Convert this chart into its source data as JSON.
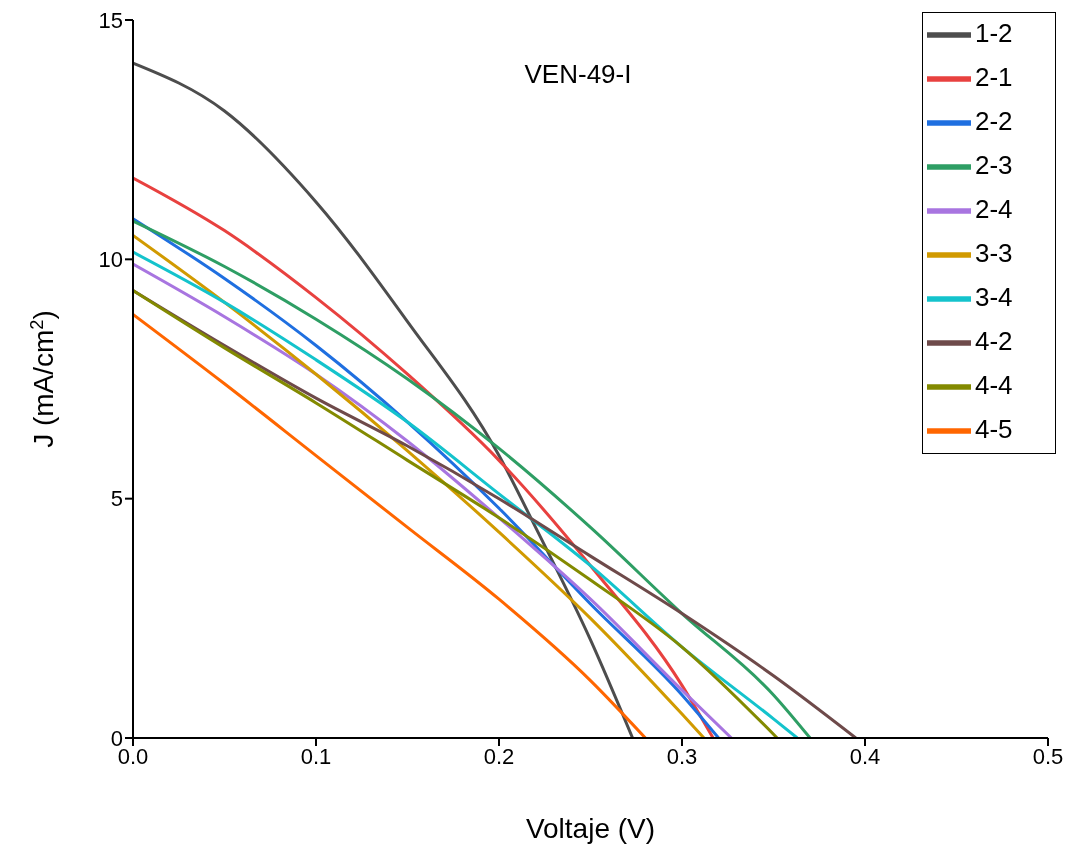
{
  "chart_data": {
    "type": "line",
    "title": "VEN-49-I",
    "xlabel": "Voltaje (V)",
    "ylabel": "J (mA/cm$^{2}$)",
    "xlim": [
      0,
      0.5
    ],
    "xticks": [
      {
        "value": 0,
        "label": "0.0"
      },
      0.1,
      0.2,
      0.3,
      0.4,
      0.5
    ],
    "ylim": [
      0,
      15
    ],
    "yticks": [
      0,
      5,
      10,
      15
    ],
    "grid": false,
    "legend": "top right",
    "series": [
      {
        "name": "1-2",
        "color": "#4d4d4d",
        "x": [
          0,
          0.05,
          0.1,
          0.15,
          0.2,
          0.22,
          0.25,
          0.273
        ],
        "values": [
          14.1,
          13.1,
          11.2,
          8.7,
          5.9,
          4.4,
          2.05,
          0
        ]
      },
      {
        "name": "2-1",
        "color": "#e8413f",
        "x": [
          0,
          0.05,
          0.1,
          0.15,
          0.2,
          0.25,
          0.3,
          0.317
        ],
        "values": [
          11.7,
          10.6,
          9.2,
          7.6,
          5.8,
          3.6,
          1.1,
          0
        ]
      },
      {
        "name": "2-2",
        "color": "#1f6fe0",
        "x": [
          0,
          0.05,
          0.1,
          0.15,
          0.2,
          0.25,
          0.3,
          0.32
        ],
        "values": [
          10.85,
          9.6,
          8.2,
          6.6,
          4.8,
          2.8,
          0.9,
          0
        ]
      },
      {
        "name": "2-3",
        "color": "#2e9e64",
        "x": [
          0,
          0.05,
          0.1,
          0.15,
          0.2,
          0.25,
          0.3,
          0.35,
          0.37
        ],
        "values": [
          10.8,
          9.85,
          8.75,
          7.5,
          6.05,
          4.4,
          2.6,
          0.9,
          0
        ]
      },
      {
        "name": "2-4",
        "color": "#a875e0",
        "x": [
          0,
          0.05,
          0.1,
          0.15,
          0.2,
          0.25,
          0.3,
          0.327
        ],
        "values": [
          9.9,
          8.8,
          7.6,
          6.2,
          4.6,
          2.9,
          1.0,
          0
        ]
      },
      {
        "name": "3-3",
        "color": "#d19a00",
        "x": [
          0,
          0.05,
          0.1,
          0.15,
          0.2,
          0.25,
          0.3,
          0.312
        ],
        "values": [
          10.5,
          9.1,
          7.6,
          6.0,
          4.3,
          2.5,
          0.5,
          0
        ]
      },
      {
        "name": "3-4",
        "color": "#14c3cc",
        "x": [
          0,
          0.05,
          0.1,
          0.15,
          0.2,
          0.25,
          0.3,
          0.35,
          0.363
        ],
        "values": [
          10.15,
          9.1,
          7.9,
          6.6,
          5.1,
          3.6,
          1.9,
          0.4,
          0
        ]
      },
      {
        "name": "4-2",
        "color": "#6e4a4a",
        "x": [
          0,
          0.05,
          0.1,
          0.15,
          0.2,
          0.25,
          0.3,
          0.35,
          0.395
        ],
        "values": [
          9.35,
          8.2,
          7.1,
          6.1,
          5.0,
          3.8,
          2.6,
          1.3,
          0
        ]
      },
      {
        "name": "4-4",
        "color": "#838a00",
        "x": [
          0,
          0.05,
          0.1,
          0.15,
          0.2,
          0.25,
          0.3,
          0.352
        ],
        "values": [
          9.35,
          8.15,
          7.0,
          5.8,
          4.6,
          3.3,
          1.9,
          0
        ]
      },
      {
        "name": "4-5",
        "color": "#ff6600",
        "x": [
          0,
          0.05,
          0.1,
          0.15,
          0.2,
          0.25,
          0.28
        ],
        "values": [
          8.85,
          7.4,
          5.9,
          4.4,
          2.9,
          1.2,
          0
        ]
      }
    ]
  }
}
